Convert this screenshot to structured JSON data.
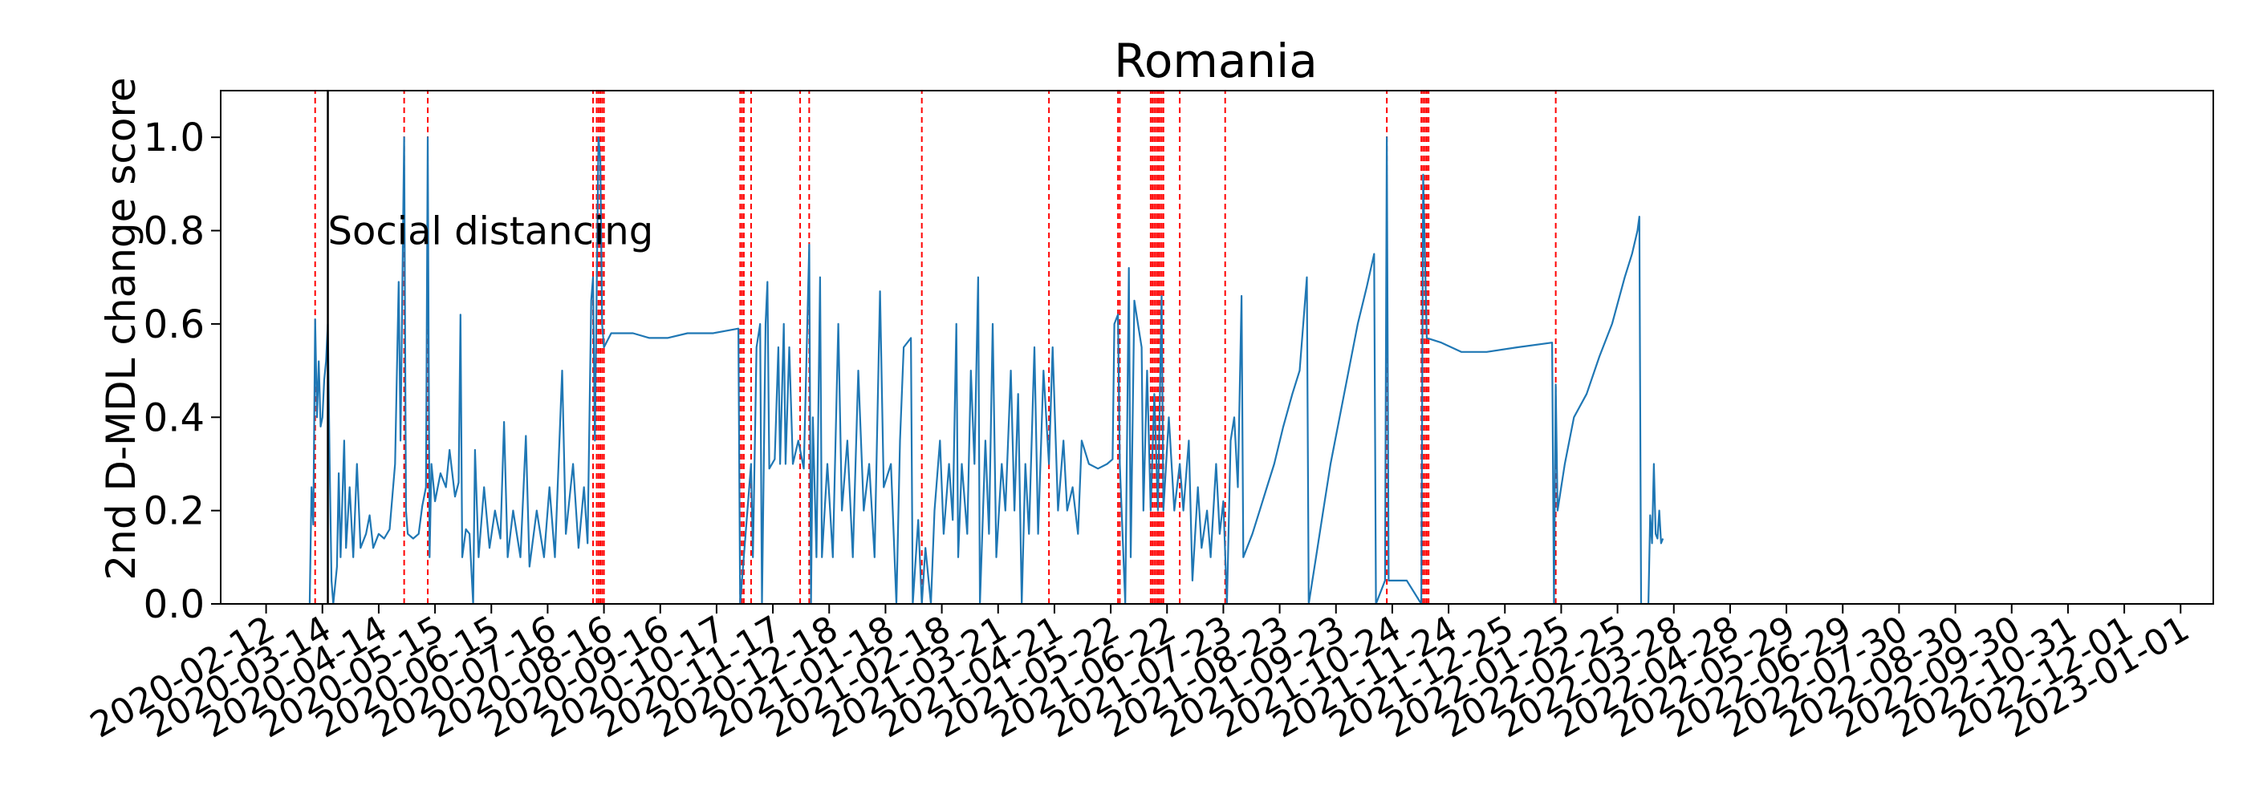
{
  "chart_data": {
    "type": "line",
    "title": "Romania",
    "xlabel": "",
    "ylabel": "2nd D-MDL change score",
    "ylim": [
      0,
      1.1
    ],
    "y_ticks": [
      0.0,
      0.2,
      0.4,
      0.6,
      0.8,
      1.0
    ],
    "y_tick_labels": [
      "0.0",
      "0.2",
      "0.4",
      "0.6",
      "0.8",
      "1.0"
    ],
    "x_range": [
      "2020-01-18",
      "2023-01-19"
    ],
    "x_tick_labels": [
      "2020-02-12",
      "2020-03-14",
      "2020-04-14",
      "2020-05-15",
      "2020-06-15",
      "2020-07-16",
      "2020-08-16",
      "2020-09-16",
      "2020-10-17",
      "2020-11-17",
      "2020-12-18",
      "2021-01-18",
      "2021-02-18",
      "2021-03-21",
      "2021-04-21",
      "2021-05-22",
      "2021-06-22",
      "2021-07-23",
      "2021-08-23",
      "2021-09-23",
      "2021-10-24",
      "2021-11-24",
      "2021-12-25",
      "2022-01-25",
      "2022-02-25",
      "2022-03-28",
      "2022-04-28",
      "2022-05-29",
      "2022-06-29",
      "2022-07-30",
      "2022-08-30",
      "2022-09-30",
      "2022-10-31",
      "2022-12-01",
      "2023-01-01"
    ],
    "grid": false,
    "series": [
      {
        "color": "#1f77b4",
        "points": [
          [
            "2020-03-07",
            0.0
          ],
          [
            "2020-03-08",
            0.25
          ],
          [
            "2020-03-09",
            0.17
          ],
          [
            "2020-03-10",
            0.61
          ],
          [
            "2020-03-11",
            0.4
          ],
          [
            "2020-03-12",
            0.52
          ],
          [
            "2020-03-13",
            0.38
          ],
          [
            "2020-03-14",
            0.4
          ],
          [
            "2020-03-15",
            0.48
          ],
          [
            "2020-03-16",
            0.52
          ],
          [
            "2020-03-17",
            0.6
          ],
          [
            "2020-03-18",
            0.3
          ],
          [
            "2020-03-19",
            0.05
          ],
          [
            "2020-03-20",
            0.0
          ],
          [
            "2020-03-22",
            0.08
          ],
          [
            "2020-03-23",
            0.28
          ],
          [
            "2020-03-24",
            0.1
          ],
          [
            "2020-03-26",
            0.35
          ],
          [
            "2020-03-27",
            0.12
          ],
          [
            "2020-03-29",
            0.25
          ],
          [
            "2020-03-31",
            0.1
          ],
          [
            "2020-04-02",
            0.3
          ],
          [
            "2020-04-04",
            0.12
          ],
          [
            "2020-04-07",
            0.15
          ],
          [
            "2020-04-09",
            0.19
          ],
          [
            "2020-04-11",
            0.12
          ],
          [
            "2020-04-14",
            0.15
          ],
          [
            "2020-04-17",
            0.14
          ],
          [
            "2020-04-20",
            0.16
          ],
          [
            "2020-04-23",
            0.3
          ],
          [
            "2020-04-25",
            0.69
          ],
          [
            "2020-04-26",
            0.35
          ],
          [
            "2020-04-28",
            1.0
          ],
          [
            "2020-04-29",
            0.2
          ],
          [
            "2020-04-30",
            0.15
          ],
          [
            "2020-05-03",
            0.14
          ],
          [
            "2020-05-06",
            0.15
          ],
          [
            "2020-05-08",
            0.21
          ],
          [
            "2020-05-10",
            0.25
          ],
          [
            "2020-05-11",
            1.0
          ],
          [
            "2020-05-12",
            0.1
          ],
          [
            "2020-05-13",
            0.3
          ],
          [
            "2020-05-15",
            0.22
          ],
          [
            "2020-05-18",
            0.28
          ],
          [
            "2020-05-21",
            0.25
          ],
          [
            "2020-05-23",
            0.33
          ],
          [
            "2020-05-26",
            0.23
          ],
          [
            "2020-05-28",
            0.26
          ],
          [
            "2020-05-29",
            0.62
          ],
          [
            "2020-05-30",
            0.1
          ],
          [
            "2020-06-01",
            0.16
          ],
          [
            "2020-06-03",
            0.15
          ],
          [
            "2020-06-05",
            0.0
          ],
          [
            "2020-06-06",
            0.33
          ],
          [
            "2020-06-08",
            0.1
          ],
          [
            "2020-06-11",
            0.25
          ],
          [
            "2020-06-14",
            0.12
          ],
          [
            "2020-06-17",
            0.2
          ],
          [
            "2020-06-20",
            0.14
          ],
          [
            "2020-06-22",
            0.39
          ],
          [
            "2020-06-24",
            0.1
          ],
          [
            "2020-06-27",
            0.2
          ],
          [
            "2020-07-01",
            0.1
          ],
          [
            "2020-07-04",
            0.36
          ],
          [
            "2020-07-06",
            0.08
          ],
          [
            "2020-07-10",
            0.2
          ],
          [
            "2020-07-14",
            0.1
          ],
          [
            "2020-07-17",
            0.25
          ],
          [
            "2020-07-20",
            0.1
          ],
          [
            "2020-07-24",
            0.5
          ],
          [
            "2020-07-26",
            0.15
          ],
          [
            "2020-07-30",
            0.3
          ],
          [
            "2020-08-02",
            0.12
          ],
          [
            "2020-08-05",
            0.25
          ],
          [
            "2020-08-07",
            0.13
          ],
          [
            "2020-08-09",
            0.65
          ],
          [
            "2020-08-10",
            0.7
          ],
          [
            "2020-08-11",
            0.35
          ],
          [
            "2020-08-13",
            1.0
          ],
          [
            "2020-08-14",
            0.95
          ],
          [
            "2020-08-15",
            0.6
          ],
          [
            "2020-08-16",
            0.55
          ],
          [
            "2020-08-20",
            0.58
          ],
          [
            "2020-09-01",
            0.58
          ],
          [
            "2020-09-10",
            0.57
          ],
          [
            "2020-09-20",
            0.57
          ],
          [
            "2020-10-01",
            0.58
          ],
          [
            "2020-10-15",
            0.58
          ],
          [
            "2020-10-29",
            0.59
          ],
          [
            "2020-10-30",
            0.0
          ],
          [
            "2020-11-05",
            0.3
          ],
          [
            "2020-11-06",
            0.1
          ],
          [
            "2020-11-08",
            0.55
          ],
          [
            "2020-11-10",
            0.6
          ],
          [
            "2020-11-11",
            0.0
          ],
          [
            "2020-11-13",
            0.6
          ],
          [
            "2020-11-14",
            0.69
          ],
          [
            "2020-11-15",
            0.29
          ],
          [
            "2020-11-18",
            0.31
          ],
          [
            "2020-11-20",
            0.55
          ],
          [
            "2020-11-21",
            0.3
          ],
          [
            "2020-11-23",
            0.6
          ],
          [
            "2020-11-24",
            0.3
          ],
          [
            "2020-11-26",
            0.55
          ],
          [
            "2020-11-28",
            0.3
          ],
          [
            "2020-12-01",
            0.35
          ],
          [
            "2020-12-04",
            0.29
          ],
          [
            "2020-12-07",
            0.77
          ],
          [
            "2020-12-08",
            0.0
          ],
          [
            "2020-12-09",
            0.4
          ],
          [
            "2020-12-11",
            0.1
          ],
          [
            "2020-12-13",
            0.7
          ],
          [
            "2020-12-14",
            0.1
          ],
          [
            "2020-12-17",
            0.3
          ],
          [
            "2020-12-20",
            0.1
          ],
          [
            "2020-12-23",
            0.6
          ],
          [
            "2020-12-25",
            0.2
          ],
          [
            "2020-12-28",
            0.35
          ],
          [
            "2020-12-31",
            0.1
          ],
          [
            "2021-01-03",
            0.5
          ],
          [
            "2021-01-06",
            0.2
          ],
          [
            "2021-01-09",
            0.3
          ],
          [
            "2021-01-12",
            0.1
          ],
          [
            "2021-01-15",
            0.67
          ],
          [
            "2021-01-17",
            0.25
          ],
          [
            "2021-01-21",
            0.3
          ],
          [
            "2021-01-24",
            0.0
          ],
          [
            "2021-01-26",
            0.35
          ],
          [
            "2021-01-28",
            0.55
          ],
          [
            "2021-02-01",
            0.57
          ],
          [
            "2021-02-02",
            0.0
          ],
          [
            "2021-02-05",
            0.18
          ],
          [
            "2021-02-07",
            0.0
          ],
          [
            "2021-02-09",
            0.12
          ],
          [
            "2021-02-12",
            0.0
          ],
          [
            "2021-02-14",
            0.2
          ],
          [
            "2021-02-17",
            0.35
          ],
          [
            "2021-02-19",
            0.15
          ],
          [
            "2021-02-22",
            0.3
          ],
          [
            "2021-02-24",
            0.18
          ],
          [
            "2021-02-26",
            0.6
          ],
          [
            "2021-02-27",
            0.1
          ],
          [
            "2021-03-01",
            0.3
          ],
          [
            "2021-03-04",
            0.15
          ],
          [
            "2021-03-06",
            0.5
          ],
          [
            "2021-03-08",
            0.3
          ],
          [
            "2021-03-10",
            0.7
          ],
          [
            "2021-03-11",
            0.0
          ],
          [
            "2021-03-14",
            0.35
          ],
          [
            "2021-03-16",
            0.15
          ],
          [
            "2021-03-18",
            0.6
          ],
          [
            "2021-03-20",
            0.1
          ],
          [
            "2021-03-23",
            0.3
          ],
          [
            "2021-03-25",
            0.2
          ],
          [
            "2021-03-28",
            0.5
          ],
          [
            "2021-03-30",
            0.2
          ],
          [
            "2021-04-01",
            0.45
          ],
          [
            "2021-04-03",
            0.0
          ],
          [
            "2021-04-05",
            0.3
          ],
          [
            "2021-04-07",
            0.15
          ],
          [
            "2021-04-10",
            0.55
          ],
          [
            "2021-04-12",
            0.15
          ],
          [
            "2021-04-15",
            0.5
          ],
          [
            "2021-04-18",
            0.3
          ],
          [
            "2021-04-20",
            0.55
          ],
          [
            "2021-04-23",
            0.2
          ],
          [
            "2021-04-26",
            0.35
          ],
          [
            "2021-04-28",
            0.2
          ],
          [
            "2021-05-01",
            0.25
          ],
          [
            "2021-05-04",
            0.15
          ],
          [
            "2021-05-06",
            0.35
          ],
          [
            "2021-05-10",
            0.3
          ],
          [
            "2021-05-15",
            0.29
          ],
          [
            "2021-05-20",
            0.3
          ],
          [
            "2021-05-23",
            0.31
          ],
          [
            "2021-05-24",
            0.6
          ],
          [
            "2021-05-26",
            0.62
          ],
          [
            "2021-05-27",
            0.3
          ],
          [
            "2021-05-30",
            0.0
          ],
          [
            "2021-06-01",
            0.72
          ],
          [
            "2021-06-02",
            0.1
          ],
          [
            "2021-06-04",
            0.65
          ],
          [
            "2021-06-06",
            0.6
          ],
          [
            "2021-06-08",
            0.55
          ],
          [
            "2021-06-09",
            0.2
          ],
          [
            "2021-06-11",
            0.5
          ],
          [
            "2021-06-13",
            0.2
          ],
          [
            "2021-06-15",
            0.45
          ],
          [
            "2021-06-17",
            0.2
          ],
          [
            "2021-06-19",
            0.66
          ],
          [
            "2021-06-20",
            0.2
          ],
          [
            "2021-06-23",
            0.4
          ],
          [
            "2021-06-26",
            0.2
          ],
          [
            "2021-06-29",
            0.3
          ],
          [
            "2021-07-01",
            0.2
          ],
          [
            "2021-07-04",
            0.35
          ],
          [
            "2021-07-06",
            0.05
          ],
          [
            "2021-07-09",
            0.25
          ],
          [
            "2021-07-11",
            0.12
          ],
          [
            "2021-07-14",
            0.2
          ],
          [
            "2021-07-16",
            0.1
          ],
          [
            "2021-07-19",
            0.3
          ],
          [
            "2021-07-21",
            0.15
          ],
          [
            "2021-07-23",
            0.22
          ],
          [
            "2021-07-25",
            0.0
          ],
          [
            "2021-07-27",
            0.35
          ],
          [
            "2021-07-29",
            0.4
          ],
          [
            "2021-07-31",
            0.25
          ],
          [
            "2021-08-02",
            0.66
          ],
          [
            "2021-08-03",
            0.1
          ],
          [
            "2021-08-08",
            0.15
          ],
          [
            "2021-08-12",
            0.2
          ],
          [
            "2021-08-16",
            0.25
          ],
          [
            "2021-08-20",
            0.3
          ],
          [
            "2021-08-25",
            0.38
          ],
          [
            "2021-08-30",
            0.45
          ],
          [
            "2021-09-03",
            0.5
          ],
          [
            "2021-09-07",
            0.7
          ],
          [
            "2021-09-08",
            0.0
          ],
          [
            "2021-09-12",
            0.1
          ],
          [
            "2021-09-16",
            0.2
          ],
          [
            "2021-09-20",
            0.3
          ],
          [
            "2021-09-25",
            0.4
          ],
          [
            "2021-09-30",
            0.5
          ],
          [
            "2021-10-05",
            0.6
          ],
          [
            "2021-10-10",
            0.68
          ],
          [
            "2021-10-14",
            0.75
          ],
          [
            "2021-10-15",
            0.0
          ],
          [
            "2021-10-20",
            0.05
          ],
          [
            "2021-10-21",
            1.0
          ],
          [
            "2021-10-22",
            0.05
          ],
          [
            "2021-11-01",
            0.05
          ],
          [
            "2021-11-09",
            0.0
          ],
          [
            "2021-11-10",
            0.92
          ],
          [
            "2021-11-12",
            0.57
          ],
          [
            "2021-11-20",
            0.56
          ],
          [
            "2021-12-01",
            0.54
          ],
          [
            "2021-12-15",
            0.54
          ],
          [
            "2022-01-01",
            0.55
          ],
          [
            "2022-01-20",
            0.56
          ],
          [
            "2022-01-21",
            0.0
          ],
          [
            "2022-01-22",
            0.47
          ],
          [
            "2022-01-23",
            0.2
          ],
          [
            "2022-01-27",
            0.3
          ],
          [
            "2022-02-01",
            0.4
          ],
          [
            "2022-02-08",
            0.45
          ],
          [
            "2022-02-15",
            0.53
          ],
          [
            "2022-02-22",
            0.6
          ],
          [
            "2022-03-01",
            0.7
          ],
          [
            "2022-03-05",
            0.75
          ],
          [
            "2022-03-08",
            0.8
          ],
          [
            "2022-03-09",
            0.83
          ],
          [
            "2022-03-10",
            0.0
          ],
          [
            "2022-03-14",
            0.0
          ],
          [
            "2022-03-15",
            0.19
          ],
          [
            "2022-03-16",
            0.13
          ],
          [
            "2022-03-17",
            0.3
          ],
          [
            "2022-03-18",
            0.15
          ],
          [
            "2022-03-19",
            0.14
          ],
          [
            "2022-03-20",
            0.2
          ],
          [
            "2022-03-21",
            0.13
          ],
          [
            "2022-03-22",
            0.14
          ]
        ]
      }
    ],
    "changepoints": [
      "2020-03-10",
      "2020-04-28",
      "2020-05-11",
      "2020-08-10",
      "2020-08-12",
      "2020-08-13",
      "2020-08-14",
      "2020-08-15",
      "2020-08-16",
      "2020-10-30",
      "2020-10-31",
      "2020-11-01",
      "2020-11-05",
      "2020-12-02",
      "2020-12-07",
      "2021-02-07",
      "2021-04-18",
      "2021-05-26",
      "2021-05-27",
      "2021-06-13",
      "2021-06-14",
      "2021-06-15",
      "2021-06-16",
      "2021-06-17",
      "2021-06-18",
      "2021-06-19",
      "2021-06-20",
      "2021-06-29",
      "2021-07-24",
      "2021-10-21",
      "2021-11-09",
      "2021-11-10",
      "2021-11-11",
      "2021-11-12",
      "2021-11-13",
      "2022-01-22"
    ],
    "annotation": {
      "date": "2020-03-17",
      "text": "Social distancing"
    }
  }
}
